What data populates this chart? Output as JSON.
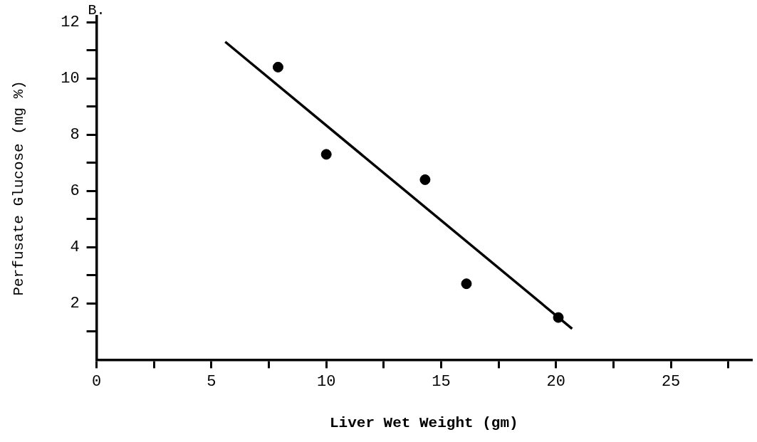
{
  "chart_data": {
    "type": "scatter",
    "xlabel": "Liver Wet Weight (gm)",
    "ylabel": "Perfusate Glucose (mg %)",
    "annotations": [
      "B."
    ],
    "series": [
      {
        "color": "#000000",
        "x": [
          7.9,
          10.0,
          14.3,
          16.1,
          20.1
        ],
        "values": [
          10.4,
          7.3,
          6.4,
          2.7,
          1.5
        ],
        "marker": "circle"
      },
      {
        "type": "line",
        "color": "#000000",
        "x": [
          5.6,
          20.7
        ],
        "values": [
          11.3,
          1.1
        ],
        "marker": "none",
        "line_style": "solid"
      }
    ],
    "xlim": [
      0,
      28.5
    ],
    "ylim": [
      0,
      12.2
    ],
    "xticks": [
      0,
      {
        "value": 2.5,
        "label": null
      },
      5,
      {
        "value": 7.5,
        "label": null
      },
      10,
      {
        "value": 12.5,
        "label": null
      },
      15,
      {
        "value": 17.5,
        "label": null
      },
      20,
      {
        "value": 22.5,
        "label": null
      },
      25,
      {
        "value": 27.5,
        "label": null
      }
    ],
    "yticks": [
      {
        "value": 1,
        "label": null
      },
      2,
      {
        "value": 3,
        "label": null
      },
      4,
      {
        "value": 5,
        "label": null
      },
      6,
      {
        "value": 7,
        "label": null
      },
      8,
      {
        "value": 9,
        "label": null
      },
      10,
      {
        "value": 11,
        "label": null
      },
      12
    ],
    "grid": false,
    "legend": false
  }
}
